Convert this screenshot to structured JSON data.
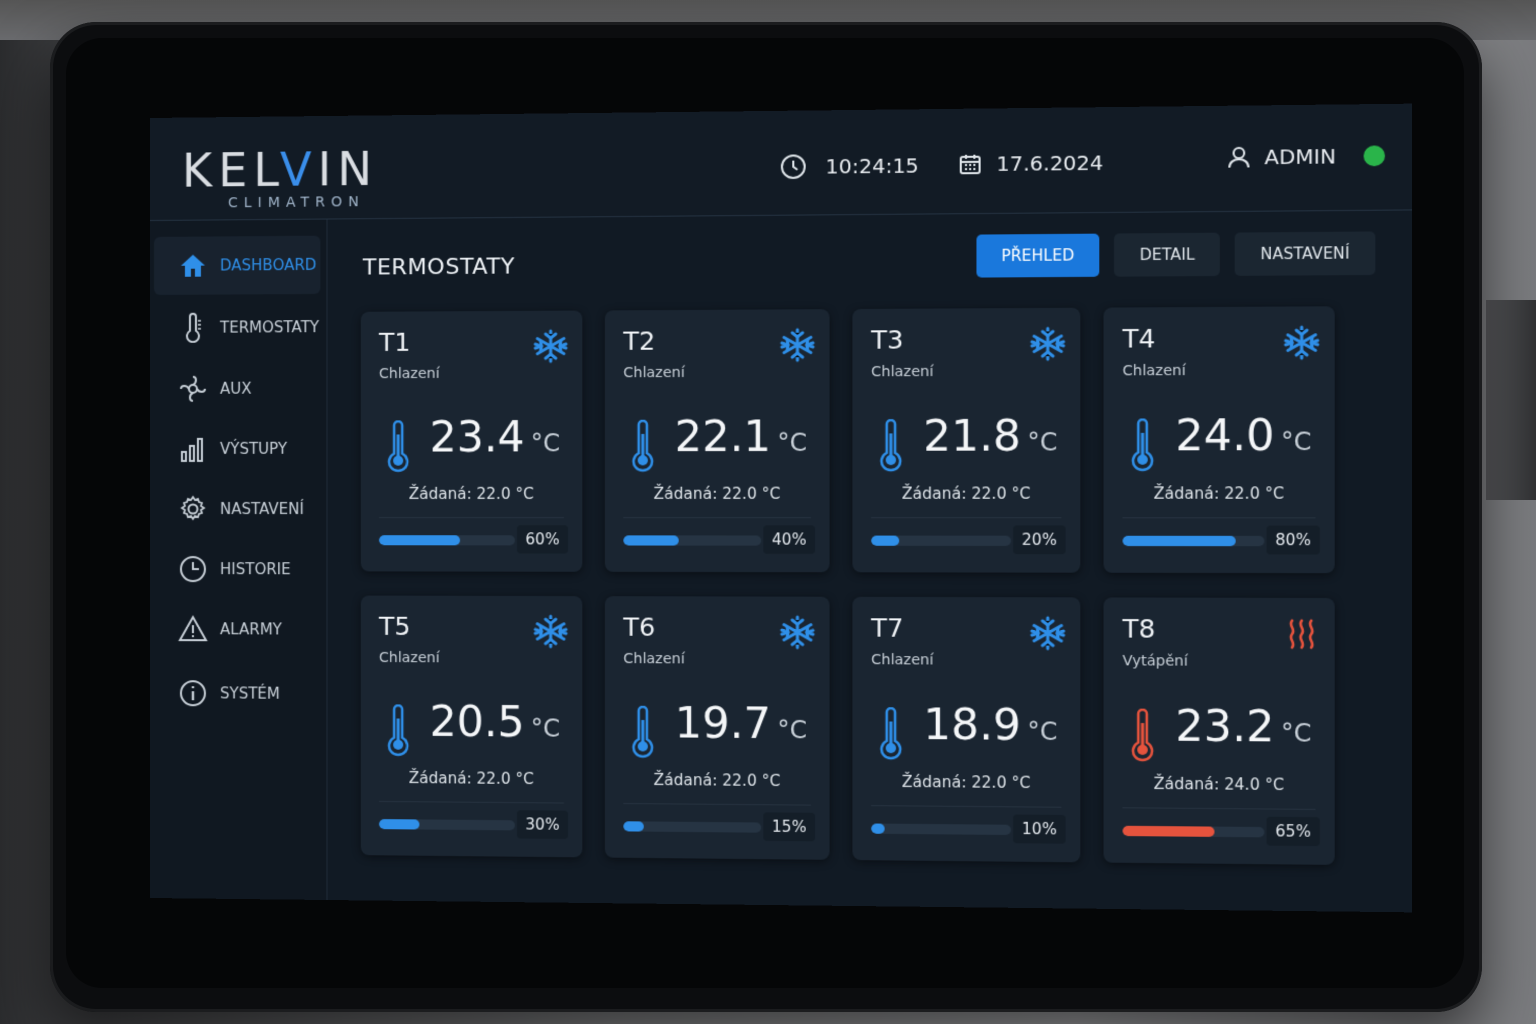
{
  "brand": {
    "logo_left": "K",
    "logo_mid": "ELV",
    "logo_right": "IN",
    "sub": "CLIMATRON"
  },
  "header": {
    "time": "10:24:15",
    "date": "17.6.2024",
    "user": "ADMIN"
  },
  "sidebar": {
    "items": [
      {
        "label": "DASHBOARD",
        "icon": "home-icon"
      },
      {
        "label": "TERMOSTATY",
        "icon": "thermometer-icon"
      },
      {
        "label": "AUX",
        "icon": "aux-icon"
      },
      {
        "label": "VÝSTUPY",
        "icon": "bar-chart-icon"
      },
      {
        "label": "NASTAVENÍ",
        "icon": "gear-icon"
      },
      {
        "label": "HISTORIE",
        "icon": "clock-icon"
      },
      {
        "label": "ALARMY",
        "icon": "warning-icon"
      },
      {
        "label": "SYSTÉM",
        "icon": "info-icon"
      }
    ]
  },
  "main": {
    "title": "TERMOSTATY",
    "tabs": [
      {
        "label": "PŘEHLED"
      },
      {
        "label": "DETAIL"
      },
      {
        "label": "NASTAVENÍ"
      }
    ]
  },
  "colors": {
    "accent": "#1a78dc",
    "cool": "#2f8fe8",
    "heat": "#e5533d",
    "ok": "#2ab44a"
  },
  "cards": [
    {
      "id": "T1",
      "mode": "Chlazení",
      "mode_icon": "snowflake-icon",
      "temp": "23.4",
      "unit": "°C",
      "setpoint": "Žádaná: 22.0 °C",
      "percent": "60%",
      "fraction": 0.6
    },
    {
      "id": "T2",
      "mode": "Chlazení",
      "mode_icon": "snowflake-icon",
      "temp": "22.1",
      "unit": "°C",
      "setpoint": "Žádaná: 22.0 °C",
      "percent": "40%",
      "fraction": 0.4
    },
    {
      "id": "T3",
      "mode": "Chlazení",
      "mode_icon": "snowflake-icon",
      "temp": "21.8",
      "unit": "°C",
      "setpoint": "Žádaná: 22.0 °C",
      "percent": "20%",
      "fraction": 0.2
    },
    {
      "id": "T4",
      "mode": "Chlazení",
      "mode_icon": "snowflake-icon",
      "temp": "24.0",
      "unit": "°C",
      "setpoint": "Žádaná: 22.0 °C",
      "percent": "80%",
      "fraction": 0.8
    },
    {
      "id": "T5",
      "mode": "Chlazení",
      "mode_icon": "snowflake-icon",
      "temp": "20.5",
      "unit": "°C",
      "setpoint": "Žádaná: 22.0 °C",
      "percent": "30%",
      "fraction": 0.3
    },
    {
      "id": "T6",
      "mode": "Chlazení",
      "mode_icon": "snowflake-icon",
      "temp": "19.7",
      "unit": "°C",
      "setpoint": "Žádaná: 22.0 °C",
      "percent": "15%",
      "fraction": 0.15
    },
    {
      "id": "T7",
      "mode": "Chlazení",
      "mode_icon": "snowflake-icon",
      "temp": "18.9",
      "unit": "°C",
      "setpoint": "Žádaná: 22.0 °C",
      "percent": "10%",
      "fraction": 0.1
    },
    {
      "id": "T8",
      "mode": "Vytápění",
      "mode_icon": "heat-waves-icon",
      "temp": "23.2",
      "unit": "°C",
      "setpoint": "Žádaná: 24.0 °C",
      "percent": "65%",
      "fraction": 0.65
    }
  ]
}
